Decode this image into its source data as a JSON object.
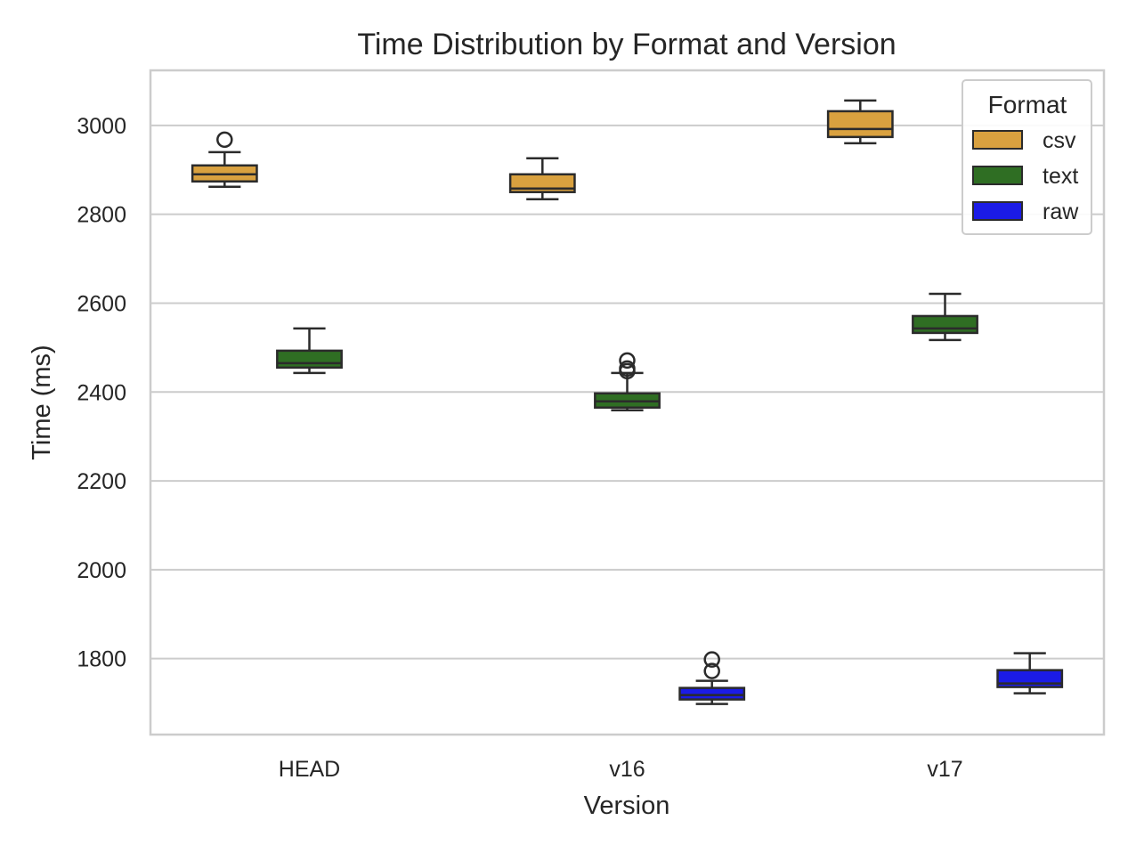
{
  "chart_data": {
    "type": "boxplot",
    "title": "Time Distribution by Format and Version",
    "xlabel": "Version",
    "ylabel": "Time (ms)",
    "categories": [
      "HEAD",
      "v16",
      "v17"
    ],
    "ylim": [
      1629,
      3124
    ],
    "yticks": [
      1800,
      2000,
      2200,
      2400,
      2600,
      2800,
      3000
    ],
    "grid": true,
    "legend": {
      "title": "Format",
      "placement": "top-right"
    },
    "series": [
      {
        "name": "csv",
        "color": "#d9a13f",
        "boxes": [
          {
            "whislo": 2862,
            "q1": 2874,
            "med": 2890,
            "q3": 2910,
            "whishi": 2940,
            "fliers": [
              2968
            ]
          },
          {
            "whislo": 2834,
            "q1": 2850,
            "med": 2858,
            "q3": 2890,
            "whishi": 2926,
            "fliers": []
          },
          {
            "whislo": 2960,
            "q1": 2974,
            "med": 2992,
            "q3": 3032,
            "whishi": 3056,
            "fliers": []
          }
        ]
      },
      {
        "name": "text",
        "color": "#2f6e23",
        "boxes": [
          {
            "whislo": 2443,
            "q1": 2455,
            "med": 2465,
            "q3": 2493,
            "whishi": 2543,
            "fliers": []
          },
          {
            "whislo": 2359,
            "q1": 2365,
            "med": 2379,
            "q3": 2397,
            "whishi": 2443,
            "fliers": [
              2471,
              2453,
              2447
            ]
          },
          {
            "whislo": 2517,
            "q1": 2533,
            "med": 2543,
            "q3": 2571,
            "whishi": 2621,
            "fliers": []
          }
        ]
      },
      {
        "name": "raw",
        "color": "#1b1be6",
        "boxes": [
          null,
          {
            "whislo": 1698,
            "q1": 1708,
            "med": 1718,
            "q3": 1734,
            "whishi": 1750,
            "fliers": [
              1798,
              1772
            ]
          },
          {
            "whislo": 1722,
            "q1": 1736,
            "med": 1744,
            "q3": 1774,
            "whishi": 1812,
            "fliers": []
          }
        ]
      }
    ]
  }
}
